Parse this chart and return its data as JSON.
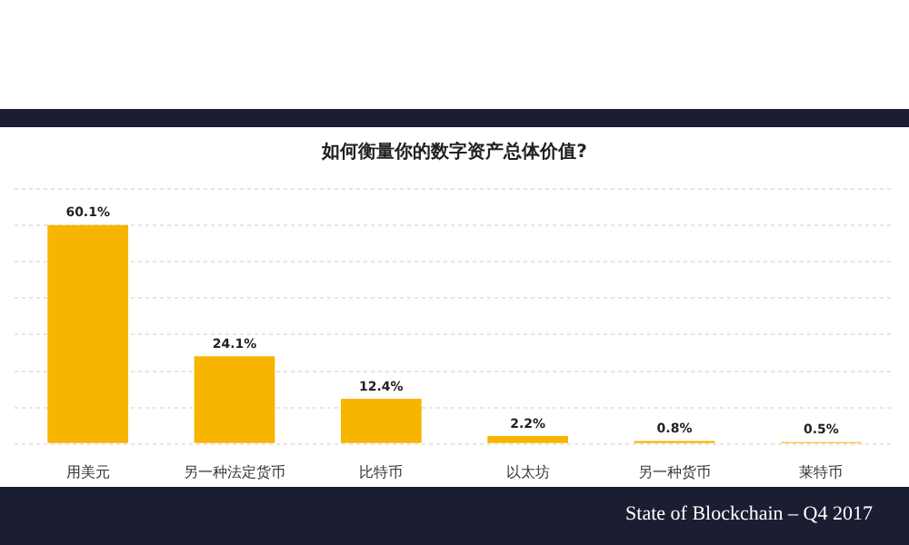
{
  "chart_data": {
    "type": "bar",
    "title": "如何衡量你的数字资产总体价值?",
    "categories": [
      "用美元",
      "另一种法定货币",
      "比特币",
      "以太坊",
      "另一种货币",
      "莱特币"
    ],
    "values": [
      60.1,
      24.1,
      12.4,
      2.2,
      0.8,
      0.5
    ],
    "value_labels": [
      "60.1%",
      "24.1%",
      "12.4%",
      "2.2%",
      "0.8%",
      "0.5%"
    ],
    "color": "#f7b500",
    "grid": "y",
    "legend": false,
    "annotations": [
      "State of Blockchain – Q4 2017"
    ]
  }
}
